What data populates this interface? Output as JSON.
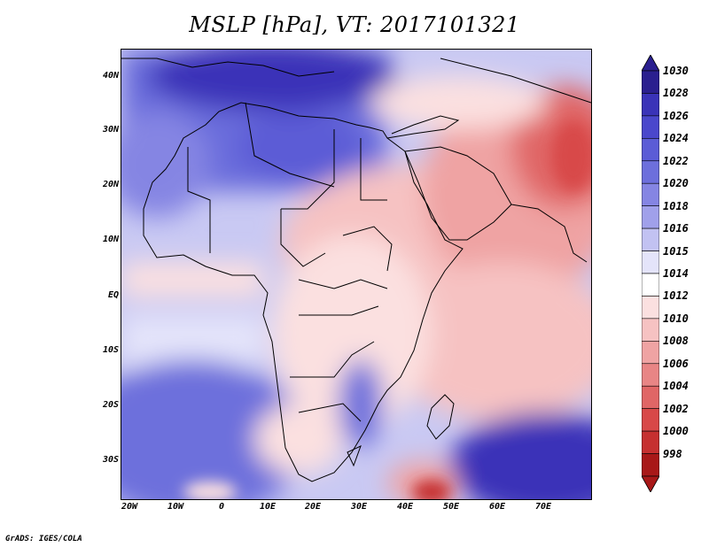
{
  "title": "MSLP [hPa], VT: 2017101321",
  "credit": "GrADS: IGES/COLA",
  "map": {
    "lat_labels": [
      "40N",
      "30N",
      "20N",
      "10N",
      "EQ",
      "10S",
      "20S",
      "30S"
    ],
    "lon_labels": [
      "20W",
      "10W",
      "0",
      "10E",
      "20E",
      "30E",
      "40E",
      "50E",
      "60E",
      "70E"
    ],
    "lon_range": [
      -22,
      80
    ],
    "lat_range": [
      -36,
      45
    ]
  },
  "colorbar": {
    "levels": [
      "1030",
      "1028",
      "1026",
      "1024",
      "1022",
      "1020",
      "1018",
      "1016",
      "1015",
      "1014",
      "1012",
      "1010",
      "1008",
      "1006",
      "1004",
      "1002",
      "1000",
      "998"
    ],
    "colors": [
      "#2a1f8f",
      "#3a33b8",
      "#4a47cc",
      "#5b5cd6",
      "#6d6fdc",
      "#8585e3",
      "#a0a0ea",
      "#c2c2f2",
      "#e4e4fa",
      "#ffffff",
      "#fbe0e0",
      "#f6c2c2",
      "#efa3a3",
      "#e88585",
      "#e06666",
      "#d84848",
      "#c63030",
      "#a81818"
    ]
  }
}
